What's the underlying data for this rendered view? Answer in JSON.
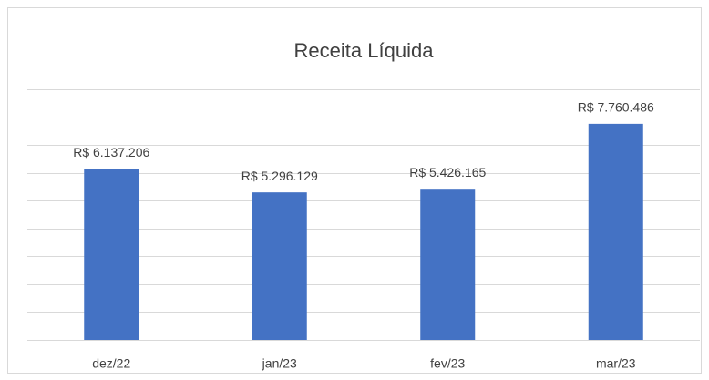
{
  "chart_data": {
    "type": "bar",
    "title": "Receita Líquida",
    "categories": [
      "dez/22",
      "jan/23",
      "fev/23",
      "mar/23"
    ],
    "values": [
      6137206,
      5296129,
      5426165,
      7760486
    ],
    "value_labels": [
      "R$ 6.137.206",
      "R$ 5.296.129",
      "R$ 5.426.165",
      "R$ 7.760.486"
    ],
    "color": "#4472c4",
    "ylim": [
      0,
      9000000
    ],
    "yticks": [
      0,
      1000000,
      2000000,
      3000000,
      4000000,
      5000000,
      6000000,
      7000000,
      8000000,
      9000000
    ],
    "grid": true
  }
}
